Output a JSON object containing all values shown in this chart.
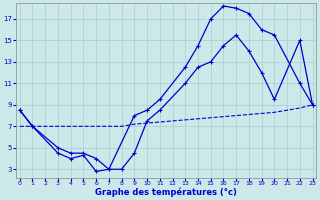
{
  "xlabel": "Graphe des températures (°c)",
  "background_color": "#cce8e8",
  "grid_color": "#aad4d4",
  "line_color": "#0000cc",
  "x_ticks": [
    0,
    1,
    2,
    3,
    4,
    5,
    6,
    7,
    8,
    9,
    10,
    11,
    12,
    13,
    14,
    15,
    16,
    17,
    18,
    19,
    20,
    21,
    22,
    23
  ],
  "y_ticks": [
    3,
    5,
    7,
    9,
    11,
    13,
    15,
    17
  ],
  "xlim": [
    -0.3,
    23.3
  ],
  "ylim": [
    2.2,
    18.5
  ],
  "curve_upper_x": [
    0,
    1,
    3,
    4,
    5,
    6,
    7,
    9,
    10,
    11,
    13,
    14,
    15,
    16,
    17,
    18,
    19,
    20,
    22,
    23
  ],
  "curve_upper_y": [
    8.5,
    7.0,
    5.0,
    4.5,
    4.5,
    4.0,
    3.0,
    8.0,
    8.5,
    9.5,
    12.5,
    14.5,
    17.0,
    18.2,
    18.0,
    17.5,
    16.0,
    15.5,
    11.0,
    9.0
  ],
  "curve_mid_x": [
    0,
    1,
    3,
    4,
    5,
    6,
    7,
    8,
    9,
    10,
    11,
    13,
    14,
    15,
    16,
    17,
    18,
    19,
    20,
    22,
    23
  ],
  "curve_mid_y": [
    8.5,
    7.0,
    4.5,
    4.0,
    4.3,
    2.8,
    3.0,
    3.0,
    4.5,
    7.5,
    8.5,
    11.0,
    12.5,
    13.0,
    14.5,
    15.5,
    14.0,
    12.0,
    9.5,
    15.0,
    9.0
  ],
  "curve_low_x": [
    0,
    1,
    3,
    5,
    6,
    7,
    8,
    9,
    10,
    11,
    13,
    14,
    15,
    16,
    17,
    18,
    19,
    20,
    22,
    23
  ],
  "curve_low_y": [
    7.0,
    7.0,
    7.0,
    7.0,
    7.0,
    7.0,
    7.0,
    7.2,
    7.3,
    7.4,
    7.6,
    7.7,
    7.8,
    7.9,
    8.0,
    8.1,
    8.2,
    8.3,
    8.7,
    9.0
  ]
}
